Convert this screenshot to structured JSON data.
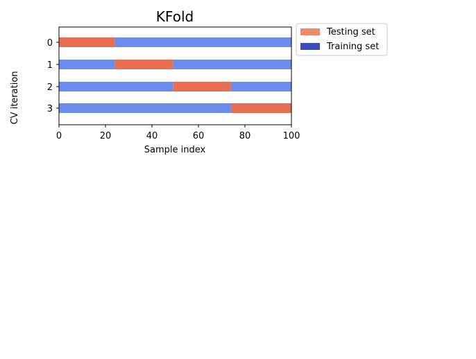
{
  "chart_data": {
    "type": "bar",
    "orientation": "horizontal",
    "title": "KFold",
    "xlabel": "Sample index",
    "ylabel": "CV iteration",
    "xlim": [
      0,
      100
    ],
    "xticks": [
      0,
      20,
      40,
      60,
      80,
      100
    ],
    "categories": [
      "0",
      "1",
      "2",
      "3"
    ],
    "folds": [
      {
        "iteration": "0",
        "segments": [
          {
            "set": "test",
            "start": 0,
            "end": 24
          },
          {
            "set": "train",
            "start": 24,
            "end": 100
          }
        ]
      },
      {
        "iteration": "1",
        "segments": [
          {
            "set": "train",
            "start": 0,
            "end": 24
          },
          {
            "set": "test",
            "start": 24,
            "end": 49
          },
          {
            "set": "train",
            "start": 49,
            "end": 100
          }
        ]
      },
      {
        "iteration": "2",
        "segments": [
          {
            "set": "train",
            "start": 0,
            "end": 49
          },
          {
            "set": "test",
            "start": 49,
            "end": 74
          },
          {
            "set": "train",
            "start": 74,
            "end": 100
          }
        ]
      },
      {
        "iteration": "3",
        "segments": [
          {
            "set": "train",
            "start": 0,
            "end": 74
          },
          {
            "set": "test",
            "start": 74,
            "end": 100
          }
        ]
      }
    ],
    "legend": {
      "placement": "outside-right-top",
      "entries": [
        {
          "key": "test",
          "label": "Testing set",
          "color": "#f08a6e"
        },
        {
          "key": "train",
          "label": "Training set",
          "color": "#3b4cc0"
        }
      ]
    },
    "bar_colors": {
      "test": "#e76f51",
      "train": "#6b8ceb"
    },
    "grid": false
  }
}
